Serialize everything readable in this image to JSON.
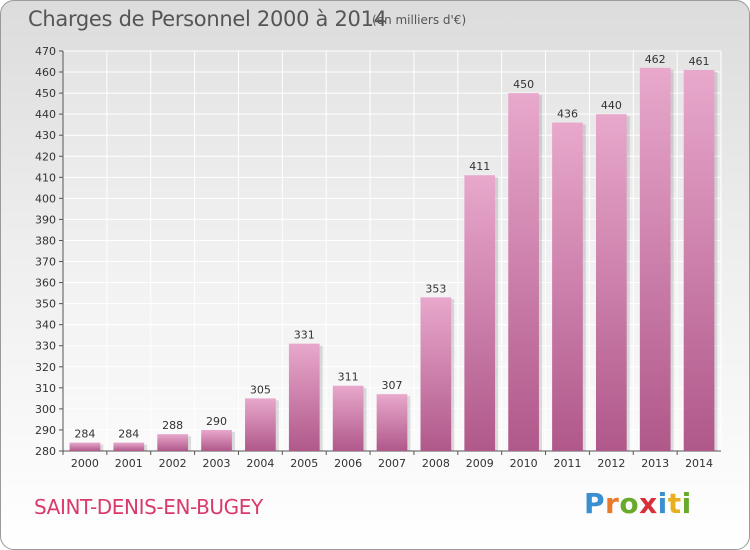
{
  "header": {
    "title": "Charges de Personnel 2000 à 2014",
    "unit": "(en milliers d'€)"
  },
  "footer": {
    "commune": "SAINT-DENIS-EN-BUGEY",
    "logo": "Proxiti"
  },
  "colors": {
    "bar_light": "#e8a8cc",
    "bar_dark": "#b0588a",
    "commune_text": "#d93a6a"
  },
  "chart_data": {
    "type": "bar",
    "title": "Charges de Personnel 2000 à 2014",
    "subtitle": "(en milliers d'€)",
    "categories": [
      "2000",
      "2001",
      "2002",
      "2003",
      "2004",
      "2005",
      "2006",
      "2007",
      "2008",
      "2009",
      "2010",
      "2011",
      "2012",
      "2013",
      "2014"
    ],
    "values": [
      284,
      284,
      288,
      290,
      305,
      331,
      311,
      307,
      353,
      411,
      450,
      436,
      440,
      462,
      461
    ],
    "ylim": [
      280,
      470
    ],
    "yticks": [
      280,
      290,
      300,
      310,
      320,
      330,
      340,
      350,
      360,
      370,
      380,
      390,
      400,
      410,
      420,
      430,
      440,
      450,
      460,
      470
    ],
    "grid": true,
    "xlabel": "",
    "ylabel": ""
  }
}
